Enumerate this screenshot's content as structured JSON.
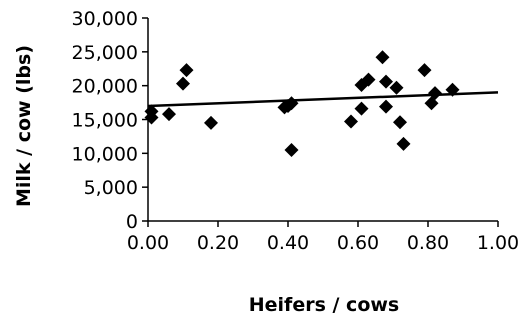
{
  "chart_data": {
    "type": "scatter",
    "xlabel": "Heifers / cows",
    "ylabel": "Milk / cow (lbs)",
    "xlim": [
      0,
      1
    ],
    "ylim": [
      0,
      30000
    ],
    "x_ticks": [
      0,
      0.2,
      0.4,
      0.6,
      0.8,
      1.0
    ],
    "x_tick_labels": [
      "0.00",
      "0.20",
      "0.40",
      "0.60",
      "0.80",
      "1.00"
    ],
    "y_ticks": [
      0,
      5000,
      10000,
      15000,
      20000,
      25000,
      30000
    ],
    "y_tick_labels": [
      "0",
      "5,000",
      "10,000",
      "15,000",
      "20,000",
      "25,000",
      "30,000"
    ],
    "grid": false,
    "legend": "none",
    "marker": "diamond",
    "color": "#000000",
    "points": [
      {
        "x": 0.01,
        "y": 15300
      },
      {
        "x": 0.01,
        "y": 16200
      },
      {
        "x": 0.06,
        "y": 15800
      },
      {
        "x": 0.1,
        "y": 20300
      },
      {
        "x": 0.11,
        "y": 22300
      },
      {
        "x": 0.18,
        "y": 14500
      },
      {
        "x": 0.39,
        "y": 16800
      },
      {
        "x": 0.4,
        "y": 17000
      },
      {
        "x": 0.41,
        "y": 17400
      },
      {
        "x": 0.41,
        "y": 10500
      },
      {
        "x": 0.58,
        "y": 14700
      },
      {
        "x": 0.61,
        "y": 16600
      },
      {
        "x": 0.61,
        "y": 20100
      },
      {
        "x": 0.63,
        "y": 20900
      },
      {
        "x": 0.67,
        "y": 24200
      },
      {
        "x": 0.68,
        "y": 20600
      },
      {
        "x": 0.68,
        "y": 16900
      },
      {
        "x": 0.71,
        "y": 19700
      },
      {
        "x": 0.72,
        "y": 14600
      },
      {
        "x": 0.73,
        "y": 11400
      },
      {
        "x": 0.79,
        "y": 22300
      },
      {
        "x": 0.81,
        "y": 17400
      },
      {
        "x": 0.82,
        "y": 18900
      },
      {
        "x": 0.87,
        "y": 19400
      }
    ],
    "trendline": {
      "type": "linear",
      "x": [
        0,
        1
      ],
      "y": [
        17000,
        19000
      ]
    }
  }
}
